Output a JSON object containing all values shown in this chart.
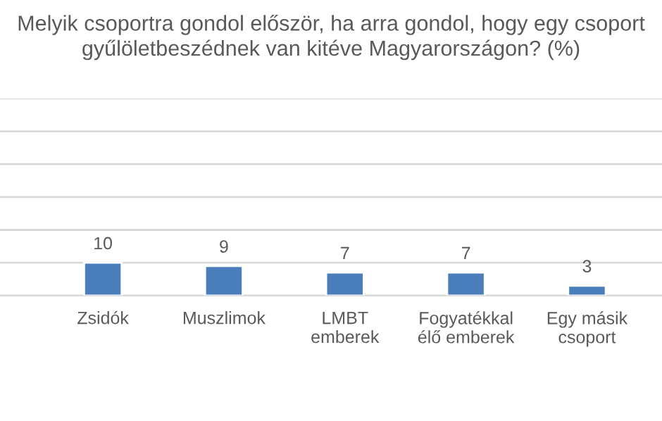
{
  "chart_data": {
    "type": "bar",
    "title": "Melyik csoportra gondol először, ha arra gondol, hogy egy csoport\ngyűlöletbeszédnek van kitéve Magyarországon? (%)",
    "categories": [
      "Zsidók",
      "Muszlimok",
      "LMBT\nemberek",
      "Fogyatékkal\nélő emberek",
      "Egy másik\ncsoport"
    ],
    "values": [
      10,
      9,
      7,
      7,
      3
    ],
    "color": "#4a7ebb",
    "ylim": [
      0,
      60
    ],
    "yticks": [
      {
        "value": 0,
        "label": null
      },
      {
        "value": 10,
        "label": null
      },
      {
        "value": 20,
        "label": null
      },
      {
        "value": 30,
        "label": null
      },
      {
        "value": 40,
        "label": null
      },
      {
        "value": 50,
        "label": null
      },
      {
        "value": 60,
        "label": null
      }
    ],
    "tick_labels": "x",
    "grid": "y",
    "data_labels": true
  }
}
